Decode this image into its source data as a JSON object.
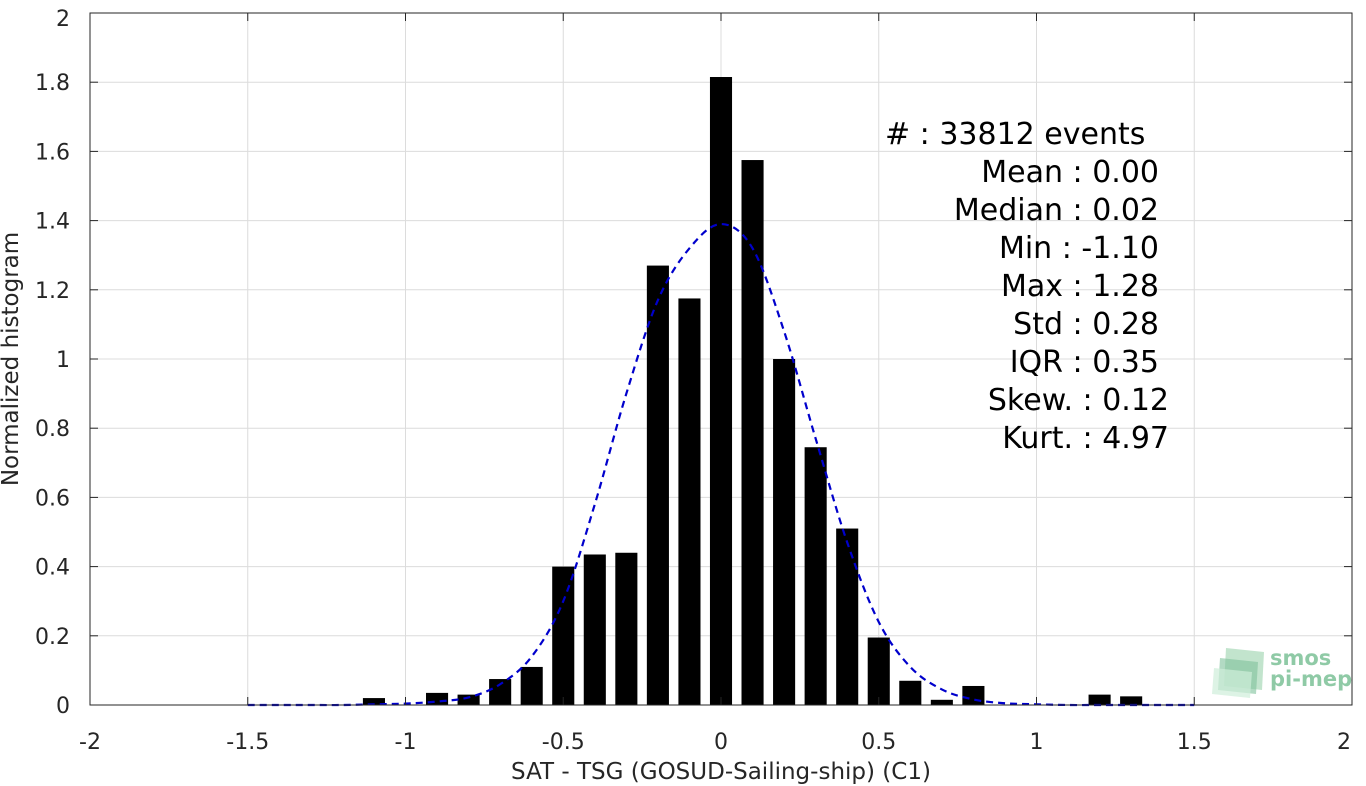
{
  "chart_data": {
    "type": "bar",
    "xlabel": "SAT - TSG (GOSUD-Sailing-ship) (C1)",
    "ylabel": "Normalized histogram",
    "xlim": [
      -2,
      2
    ],
    "ylim": [
      0,
      2
    ],
    "xticks": [
      -2,
      -1.5,
      -1,
      -0.5,
      0,
      0.5,
      1,
      1.5,
      2
    ],
    "xtick_labels": [
      "-2",
      "-1.5",
      "-1",
      "-0.5",
      "0",
      "0.5",
      "1",
      "1.5",
      "2"
    ],
    "yticks": [
      0,
      0.2,
      0.4,
      0.6,
      0.8,
      1,
      1.2,
      1.4,
      1.6,
      1.8,
      2
    ],
    "ytick_labels": [
      "0",
      "0.2",
      "0.4",
      "0.6",
      "0.8",
      "1",
      "1.2",
      "1.4",
      "1.6",
      "1.8",
      "2"
    ],
    "grid": true,
    "bar_color": "#000000",
    "bar_width": 0.07,
    "bins": [
      {
        "x": -1.1,
        "value": 0.02
      },
      {
        "x": -0.9,
        "value": 0.035
      },
      {
        "x": -0.8,
        "value": 0.03
      },
      {
        "x": -0.7,
        "value": 0.075
      },
      {
        "x": -0.6,
        "value": 0.11
      },
      {
        "x": -0.5,
        "value": 0.4
      },
      {
        "x": -0.4,
        "value": 0.435
      },
      {
        "x": -0.3,
        "value": 0.44
      },
      {
        "x": -0.2,
        "value": 1.27
      },
      {
        "x": -0.1,
        "value": 1.175
      },
      {
        "x": 0.0,
        "value": 1.815
      },
      {
        "x": 0.1,
        "value": 1.575
      },
      {
        "x": 0.2,
        "value": 1.0
      },
      {
        "x": 0.3,
        "value": 0.745
      },
      {
        "x": 0.4,
        "value": 0.51
      },
      {
        "x": 0.5,
        "value": 0.195
      },
      {
        "x": 0.6,
        "value": 0.07
      },
      {
        "x": 0.7,
        "value": 0.015
      },
      {
        "x": 0.8,
        "value": 0.055
      },
      {
        "x": 1.2,
        "value": 0.03
      },
      {
        "x": 1.3,
        "value": 0.025
      }
    ],
    "fit_curve": {
      "color": "#0000cc",
      "style": "dashed",
      "points": [
        [
          -1.5,
          0.0
        ],
        [
          -1.4,
          0.0
        ],
        [
          -1.3,
          0.0
        ],
        [
          -1.2,
          0.0
        ],
        [
          -1.1,
          0.002
        ],
        [
          -1.0,
          0.004
        ],
        [
          -0.9,
          0.01
        ],
        [
          -0.8,
          0.022
        ],
        [
          -0.7,
          0.06
        ],
        [
          -0.6,
          0.14
        ],
        [
          -0.5,
          0.3
        ],
        [
          -0.4,
          0.58
        ],
        [
          -0.3,
          0.9
        ],
        [
          -0.2,
          1.17
        ],
        [
          -0.1,
          1.32
        ],
        [
          0.0,
          1.39
        ],
        [
          0.1,
          1.32
        ],
        [
          0.2,
          1.08
        ],
        [
          0.3,
          0.77
        ],
        [
          0.4,
          0.47
        ],
        [
          0.5,
          0.24
        ],
        [
          0.6,
          0.11
        ],
        [
          0.7,
          0.045
        ],
        [
          0.8,
          0.016
        ],
        [
          0.9,
          0.005
        ],
        [
          1.0,
          0.002
        ],
        [
          1.1,
          0.0
        ],
        [
          1.2,
          0.0
        ],
        [
          1.3,
          0.0
        ],
        [
          1.4,
          0.0
        ],
        [
          1.5,
          0.0
        ]
      ]
    },
    "stats": [
      {
        "label": "#  : 33812 events",
        "align": "left"
      },
      {
        "label": "Mean : 0.00",
        "align": "right"
      },
      {
        "label": "Median : 0.02",
        "align": "right"
      },
      {
        "label": "Min : -1.10",
        "align": "right"
      },
      {
        "label": "Max : 1.28",
        "align": "right"
      },
      {
        "label": "Std : 0.28",
        "align": "right"
      },
      {
        "label": "IQR : 0.35",
        "align": "right"
      },
      {
        "label": "Skew. : 0.12",
        "align": "right"
      },
      {
        "label": "Kurt. : 4.97",
        "align": "right"
      }
    ]
  },
  "logo": {
    "line1": "smos",
    "line2": "pi-mep",
    "color": "#8fcaa6"
  }
}
